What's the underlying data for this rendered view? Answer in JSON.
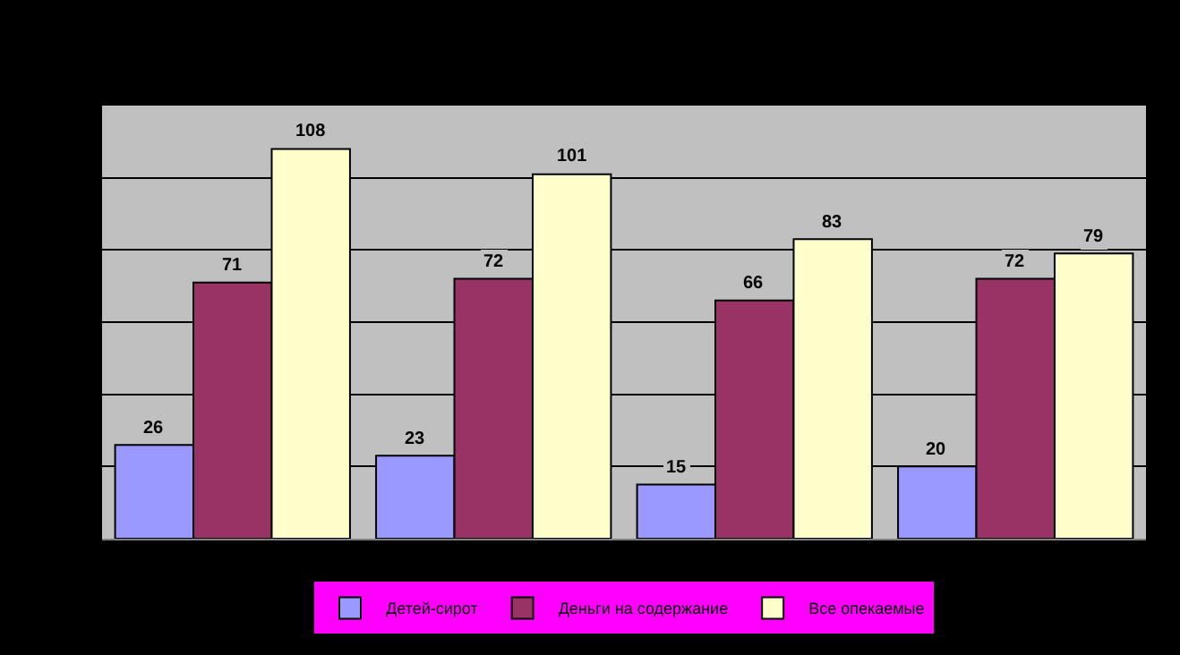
{
  "chart_data": {
    "type": "bar",
    "categories": [
      null,
      null,
      null,
      null
    ],
    "series": [
      {
        "name": "Детей-сирот",
        "color": "#9999ff",
        "values": [
          26,
          23,
          15,
          20
        ]
      },
      {
        "name": "Деньги на содержание",
        "color": "#993366",
        "values": [
          71,
          72,
          66,
          72
        ]
      },
      {
        "name": "Все опекаемые",
        "color": "#ffffcc",
        "values": [
          108,
          101,
          83,
          79
        ]
      }
    ],
    "ylim": [
      0,
      120
    ],
    "yticks": [
      {
        "value": 0,
        "label": null
      },
      {
        "value": 20,
        "label": null
      },
      {
        "value": 40,
        "label": null
      },
      {
        "value": 60,
        "label": null
      },
      {
        "value": 80,
        "label": null
      },
      {
        "value": 100,
        "label": null
      },
      {
        "value": 120,
        "label": null
      }
    ],
    "grid": "y",
    "data_labels": true,
    "legend": "bottom"
  }
}
